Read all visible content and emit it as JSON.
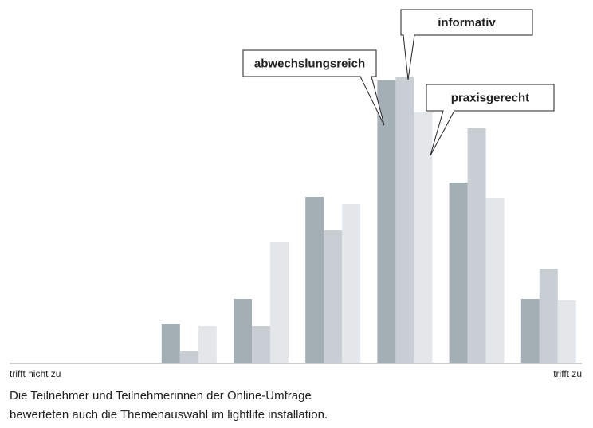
{
  "chart_data": {
    "type": "bar",
    "categories": [
      "trifft nicht zu",
      null,
      null,
      null,
      null,
      null,
      null,
      "trifft zu"
    ],
    "series": [
      {
        "name": "abwechslungsreich",
        "color": "#a3aeb5",
        "values": [
          0,
          0,
          50,
          81,
          209,
          355,
          227,
          81
        ]
      },
      {
        "name": "informativ",
        "color": "#c8ced3",
        "values": [
          0,
          0,
          15,
          47,
          167,
          359,
          295,
          119
        ]
      },
      {
        "name": "praxisgerecht",
        "color": "#e3e7e9",
        "values": [
          0,
          0,
          47,
          152,
          200,
          315,
          208,
          79
        ]
      }
    ],
    "ylim": [
      0,
      400
    ],
    "caption": [
      "Die Teilnehmer und Teilnehmerinnen der Online-Umfrage",
      "bewerteten auch die Themenauswahl im lightlife installation."
    ]
  }
}
